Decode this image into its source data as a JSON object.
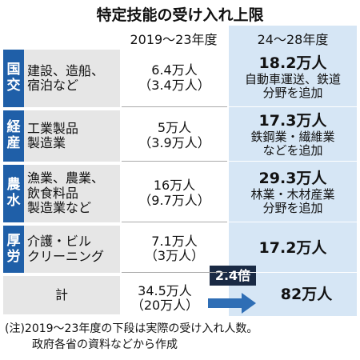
{
  "title": "特定技能の受け入れ上限",
  "header": {
    "period1": "2019～23年度",
    "period2": "24～28年度"
  },
  "rows": [
    {
      "ministry": [
        "国",
        "交"
      ],
      "sector": [
        "建設、造船、",
        "宿泊など"
      ],
      "period1": [
        "6.4万人",
        "（3.4万人）"
      ],
      "period2": "18.2万人",
      "note": [
        "自動車運送、鉄道",
        "分野を追加"
      ]
    },
    {
      "ministry": [
        "経",
        "産"
      ],
      "sector": [
        "工業製品",
        "製造業"
      ],
      "period1": [
        "5万人",
        "（3.9万人）"
      ],
      "period2": "17.3万人",
      "note": [
        "鉄鋼業・繊維業",
        "などを追加"
      ]
    },
    {
      "ministry": [
        "農",
        "水"
      ],
      "sector": [
        "漁業、農業、",
        "飲食料品",
        "製造業など"
      ],
      "period1": [
        "16万人",
        "（9.7万人）"
      ],
      "period2": "29.3万人",
      "note": [
        "林業・木材産業",
        "分野を追加"
      ]
    },
    {
      "ministry": [
        "厚",
        "労"
      ],
      "sector": [
        "介護・ビル",
        "クリーニング"
      ],
      "period1": [
        "7.1万人",
        "（3万人）"
      ],
      "period2": "17.2万人",
      "note": []
    }
  ],
  "total": {
    "label": "計",
    "period1": [
      "34.5万人",
      "（20万人）"
    ],
    "period2": "82万人",
    "ratio": "2.4倍"
  },
  "notes": [
    "(注)2019～23年度の下段は実際の受け入れ人数。",
    "政府各省の資料などから作成"
  ]
}
